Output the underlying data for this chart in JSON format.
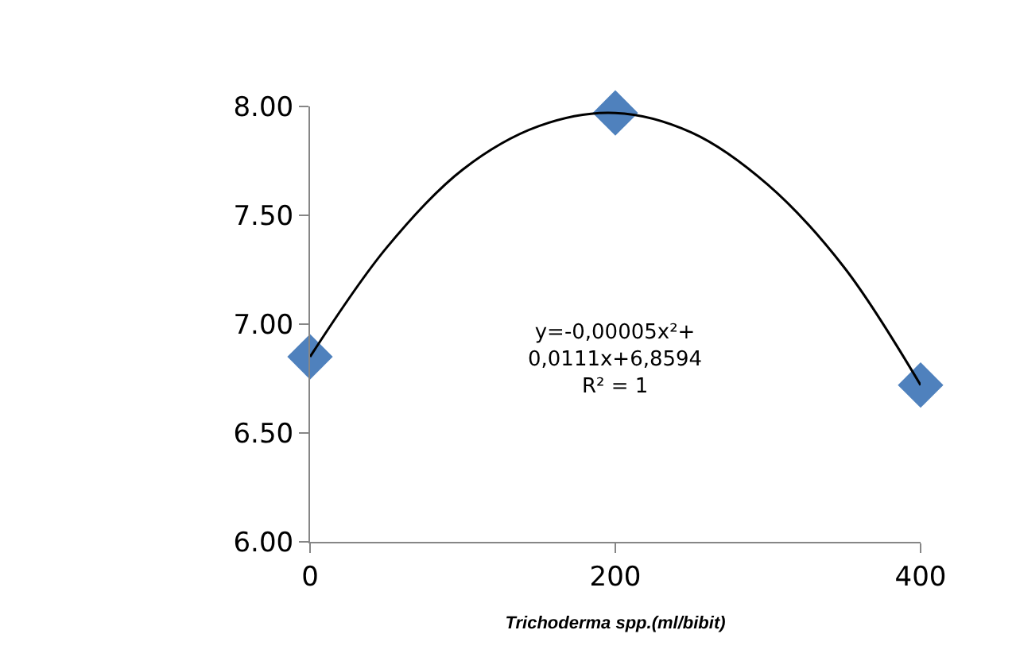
{
  "chart_data": {
    "type": "scatter",
    "xlabel": "Trichoderma spp.(ml/bibit)",
    "x": [
      0,
      200,
      400
    ],
    "series": [
      {
        "color": "#4f81bd",
        "marker": "diamond",
        "values": [
          6.85,
          7.97,
          6.72
        ]
      },
      {
        "type": "line",
        "color": "#000000",
        "marker": "none",
        "line_style": "solid",
        "x": [
          0,
          50,
          100,
          150,
          200,
          250,
          300,
          350,
          400
        ],
        "values": [
          6.85,
          7.35,
          7.71,
          7.91,
          7.97,
          7.88,
          7.64,
          7.26,
          6.72
        ]
      }
    ],
    "xlim": [
      0,
      400
    ],
    "xticks": [
      0,
      200,
      400
    ],
    "ylim": [
      6.0,
      8.0
    ],
    "yticks": [
      {
        "value": 6.0,
        "label": "6.00"
      },
      {
        "value": 6.5,
        "label": "6.50"
      },
      {
        "value": 7.0,
        "label": "7.00"
      },
      {
        "value": 7.5,
        "label": "7.50"
      },
      {
        "value": 8.0,
        "label": "8.00"
      }
    ],
    "annotations": [
      "y=-0,00005x²+\n0,0111x+6,8594\nR² = 1"
    ]
  }
}
